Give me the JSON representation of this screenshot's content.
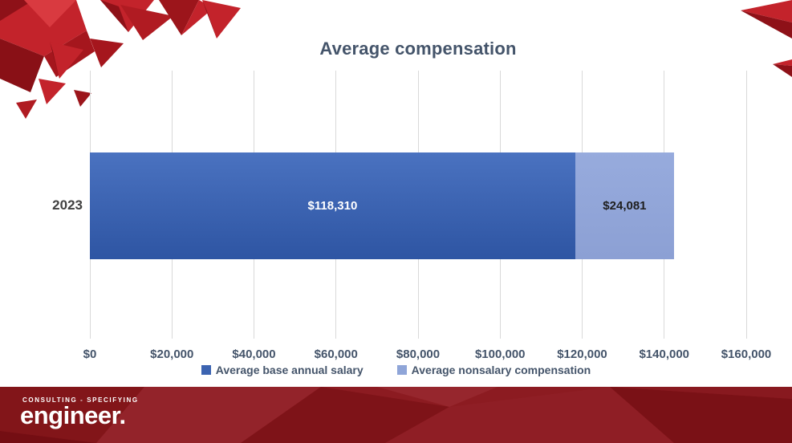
{
  "chart": {
    "title": "Average compensation",
    "category_label": "2023"
  },
  "chart_data": {
    "type": "bar",
    "orientation": "horizontal",
    "stacked": true,
    "categories": [
      "2023"
    ],
    "series": [
      {
        "name": "Average base annual salary",
        "values": [
          118310
        ],
        "label": "$118,310",
        "color_top": "#4A72C0",
        "color_bottom": "#2E55A3",
        "swatch": "#3C64B1",
        "label_color": "#FFFFFF"
      },
      {
        "name": "Average nonsalary compensation",
        "values": [
          24081
        ],
        "label": "$24,081",
        "color_top": "#97ABDD",
        "color_bottom": "#8CA0D4",
        "swatch": "#8FA5D8",
        "label_color": "#1F1F1F"
      }
    ],
    "title": "Average compensation",
    "xlabel": "",
    "ylabel": "",
    "xlim": [
      0,
      160000
    ],
    "x_ticks": [
      "$0",
      "$20,000",
      "$40,000",
      "$60,000",
      "$80,000",
      "$100,000",
      "$120,000",
      "$140,000",
      "$160,000"
    ],
    "grid": true,
    "gridline_color": "#D9D9D9",
    "legend_position": "bottom"
  },
  "branding": {
    "logo_tagline": "CONSULTING - SPECIFYING",
    "logo_word": "engineer.",
    "banner_color": "#8C1B21",
    "accent_red": "#C3232B",
    "title_color": "#44546A"
  }
}
